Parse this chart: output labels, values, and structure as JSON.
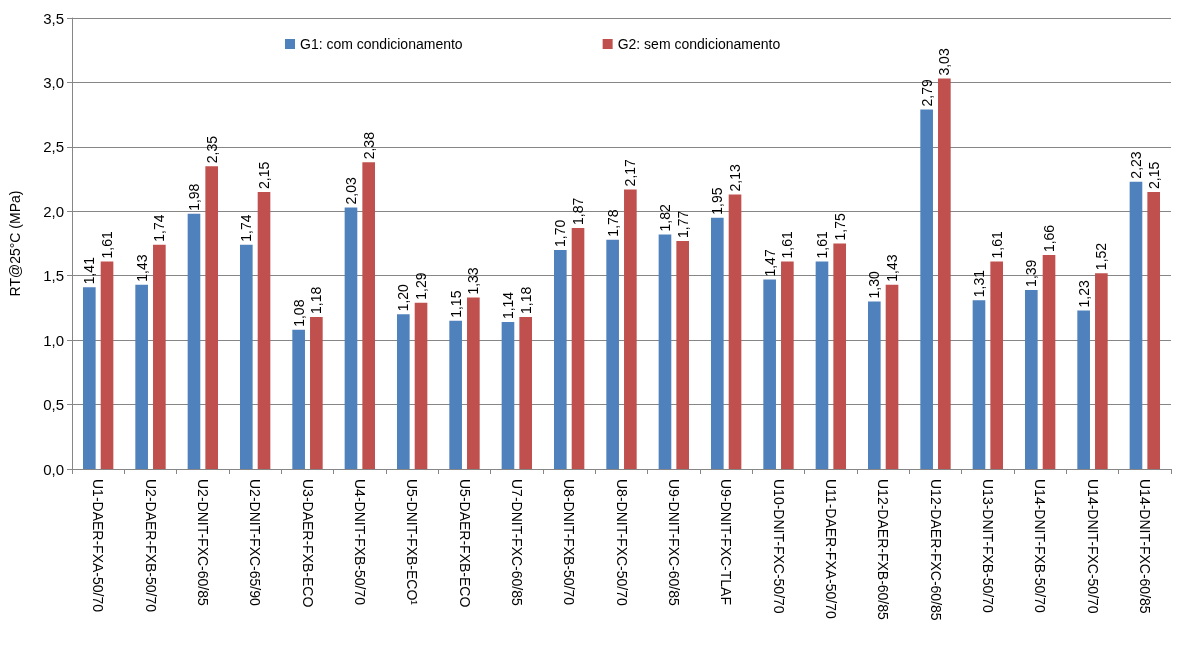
{
  "chart_data": {
    "type": "bar",
    "ylabel": "RT@25°C (MPa)",
    "categories": [
      "U1-DAER-FXA-50/70",
      "U2-DAER-FXB-50/70",
      "U2-DNIT-FXC-60/85",
      "U2-DNIT-FXC-65/90",
      "U3-DAER-FXB-ECO",
      "U4-DNIT-FXB-50/70",
      "U5-DNIT-FXB-ECO¹",
      "U5-DAER-FXB-ECO",
      "U7-DNIT-FXC-60/85",
      "U8-DNIT-FXB-50/70",
      "U8-DNIT-FXC-50/70",
      "U9-DNIT-FXC-60/85",
      "U9-DNIT-FXC-TLAF",
      "U10-DNIT-FXC-50/70",
      "U11-DAER-FXA-50/70",
      "U12-DAER-FXB-60/85",
      "U12-DAER-FXC-60/85",
      "U13-DNIT-FXB-50/70",
      "U14-DNIT-FXB-50/70",
      "U14-DNIT-FXC-50/70",
      "U14-DNIT-FXC-60/85"
    ],
    "series": [
      {
        "name": "G1: com condicionamento",
        "color": "#4f81bd",
        "values": [
          1.41,
          1.43,
          1.98,
          1.74,
          1.08,
          2.03,
          1.2,
          1.15,
          1.14,
          1.7,
          1.78,
          1.82,
          1.95,
          1.47,
          1.61,
          1.3,
          2.79,
          1.31,
          1.39,
          1.23,
          2.23
        ],
        "value_labels": [
          "1,41",
          "1,43",
          "1,98",
          "1,74",
          "1,08",
          "2,03",
          "1,20",
          "1,15",
          "1,14",
          "1,70",
          "1,78",
          "1,82",
          "1,95",
          "1,47",
          "1,61",
          "1,30",
          "2,79",
          "1,31",
          "1,39",
          "1,23",
          "2,23"
        ]
      },
      {
        "name": "G2: sem condicionamento",
        "color": "#c0504d",
        "values": [
          1.61,
          1.74,
          2.35,
          2.15,
          1.18,
          2.38,
          1.29,
          1.33,
          1.18,
          1.87,
          2.17,
          1.77,
          2.13,
          1.61,
          1.75,
          1.43,
          3.03,
          1.61,
          1.66,
          1.52,
          2.15
        ],
        "value_labels": [
          "1,61",
          "1,74",
          "2,35",
          "2,15",
          "1,18",
          "2,38",
          "1,29",
          "1,33",
          "1,18",
          "1,87",
          "2,17",
          "1,77",
          "2,13",
          "1,61",
          "1,75",
          "1,43",
          "3,03",
          "1,61",
          "1,66",
          "1,52",
          "2,15"
        ]
      }
    ],
    "ylim": [
      0,
      3.5
    ],
    "yticks": [
      {
        "value": 0,
        "label": "0,0"
      },
      {
        "value": 0.5,
        "label": "0,5"
      },
      {
        "value": 1,
        "label": "1,0"
      },
      {
        "value": 1.5,
        "label": "1,5"
      },
      {
        "value": 2,
        "label": "2,0"
      },
      {
        "value": 2.5,
        "label": "2,5"
      },
      {
        "value": 3,
        "label": "3,0"
      },
      {
        "value": 3.5,
        "label": "3,5"
      }
    ],
    "grid": "y",
    "legend": "top"
  }
}
